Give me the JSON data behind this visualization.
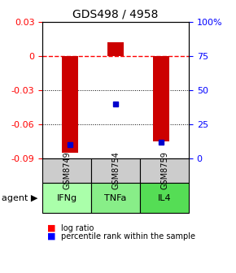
{
  "title": "GDS498 / 4958",
  "samples": [
    "GSM8749",
    "GSM8754",
    "GSM8759"
  ],
  "agents": [
    "IFNg",
    "TNFa",
    "IL4"
  ],
  "log_ratios": [
    -0.085,
    0.012,
    -0.075
  ],
  "percentile_ranks": [
    10,
    40,
    12
  ],
  "bar_color": "#cc0000",
  "dot_color": "#0000cc",
  "ylim_left": [
    -0.09,
    0.03
  ],
  "ylim_right": [
    0,
    100
  ],
  "yticks_left": [
    0.03,
    0,
    -0.03,
    -0.06,
    -0.09
  ],
  "yticks_right": [
    100,
    75,
    50,
    25,
    0
  ],
  "agent_colors": [
    "#ccffcc",
    "#99ee99",
    "#66dd66"
  ],
  "sample_bg_color": "#cccccc",
  "legend_log_ratio": "log ratio",
  "legend_percentile": "percentile rank within the sample",
  "agent_label": "agent",
  "bar_width": 0.35
}
